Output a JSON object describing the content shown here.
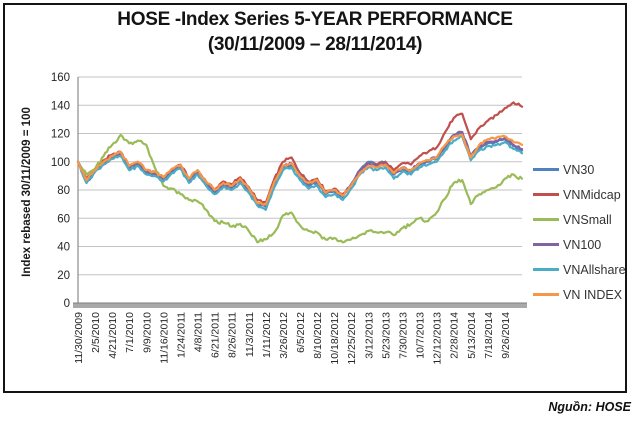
{
  "page": {
    "title_line1": "HOSE -Index Series 5-YEAR PERFORMANCE",
    "title_line2": "(30/11/2009 – 28/11/2014)",
    "source": "Nguồn: HOSE"
  },
  "chart_data": {
    "type": "line",
    "title": "HOSE -Index Series 5-YEAR PERFORMANCE (30/11/2009 – 28/11/2014)",
    "ylabel": "Index rebased 30/11/2009 = 100",
    "ylim": [
      0,
      160
    ],
    "ytick_step": 20,
    "yticks": [
      0,
      20,
      40,
      60,
      80,
      100,
      120,
      140,
      160
    ],
    "grid": true,
    "grid_color": "#c3c3c3",
    "legend_position": "right",
    "x_labels": [
      "11/30/2009",
      "2/5/2010",
      "4/21/2010",
      "7/1/2010",
      "9/9/2010",
      "11/16/2010",
      "1/24/2011",
      "4/8/2011",
      "6/21/2011",
      "8/26/2011",
      "11/3/2011",
      "1/11/2012",
      "3/26/2012",
      "6/5/2012",
      "8/10/2012",
      "10/18/2012",
      "12/25/2012",
      "3/12/2013",
      "5/23/2013",
      "7/30/2013",
      "10/7/2013",
      "12/12/2013",
      "2/28/2014",
      "5/13/2014",
      "7/18/2014",
      "9/26/2014"
    ],
    "x_range": [
      0,
      26
    ],
    "sample_step": 0.5,
    "series": [
      {
        "name": "VN30",
        "color": "#4F81BD",
        "values": [
          100,
          85,
          93,
          99,
          103,
          105,
          95,
          98,
          92,
          91,
          87,
          93,
          97,
          86,
          92,
          84,
          78,
          83,
          81,
          87,
          79,
          70,
          68,
          84,
          96,
          98,
          89,
          83,
          85,
          77,
          79,
          75,
          84,
          94,
          100,
          98,
          100,
          91,
          95,
          93,
          98,
          100,
          102,
          110,
          118,
          121,
          104,
          110,
          113,
          114,
          116,
          111,
          108
        ]
      },
      {
        "name": "VNMidcap",
        "color": "#C0504D",
        "values": [
          100,
          88,
          95,
          101,
          105,
          107,
          97,
          100,
          94,
          93,
          89,
          95,
          98,
          88,
          94,
          86,
          80,
          86,
          84,
          89,
          82,
          73,
          71,
          88,
          100,
          103,
          92,
          86,
          88,
          79,
          81,
          77,
          83,
          93,
          99,
          98,
          100,
          94,
          99,
          98,
          104,
          107,
          110,
          121,
          131,
          134,
          116,
          124,
          129,
          133,
          138,
          142,
          139
        ]
      },
      {
        "name": "VNSmall",
        "color": "#9BBB59",
        "values": [
          100,
          91,
          95,
          104,
          112,
          119,
          113,
          115,
          112,
          96,
          83,
          81,
          77,
          73,
          72,
          66,
          58,
          57,
          54,
          56,
          51,
          43,
          45,
          50,
          62,
          64,
          55,
          51,
          50,
          45,
          46,
          43,
          45,
          48,
          51,
          50,
          50,
          48,
          53,
          56,
          60,
          58,
          64,
          74,
          85,
          87,
          70,
          77,
          80,
          82,
          88,
          91,
          88
        ]
      },
      {
        "name": "VN100",
        "color": "#8064A2",
        "values": [
          100,
          86,
          94,
          99,
          103,
          106,
          96,
          99,
          93,
          92,
          88,
          94,
          97,
          87,
          93,
          85,
          79,
          84,
          82,
          87,
          80,
          71,
          69,
          85,
          97,
          99,
          90,
          84,
          86,
          78,
          80,
          76,
          84,
          94,
          99,
          97,
          99,
          91,
          96,
          94,
          99,
          101,
          103,
          111,
          119,
          121,
          104,
          111,
          114,
          115,
          117,
          112,
          109
        ]
      },
      {
        "name": "VNAllshare",
        "color": "#4BACC6",
        "values": [
          100,
          85,
          93,
          98,
          102,
          104,
          94,
          97,
          91,
          90,
          86,
          92,
          95,
          85,
          91,
          83,
          77,
          82,
          80,
          85,
          78,
          69,
          66,
          82,
          94,
          96,
          87,
          81,
          83,
          75,
          77,
          73,
          81,
          91,
          96,
          94,
          96,
          88,
          93,
          91,
          96,
          98,
          100,
          108,
          115,
          118,
          101,
          108,
          111,
          112,
          114,
          109,
          106
        ]
      },
      {
        "name": "VN INDEX",
        "color": "#F79646",
        "values": [
          100,
          87,
          94,
          100,
          104,
          107,
          97,
          100,
          94,
          93,
          89,
          95,
          98,
          88,
          94,
          86,
          80,
          85,
          83,
          88,
          81,
          71,
          70,
          86,
          97,
          99,
          90,
          85,
          87,
          78,
          80,
          76,
          83,
          92,
          97,
          96,
          98,
          92,
          96,
          94,
          99,
          101,
          103,
          112,
          118,
          119,
          103,
          112,
          116,
          117,
          118,
          114,
          112
        ]
      }
    ]
  }
}
